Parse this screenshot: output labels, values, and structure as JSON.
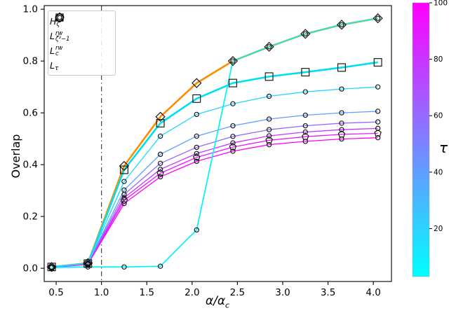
{
  "figure": {
    "ylabel": "Overlap",
    "xlabel_base": "α/α",
    "xlabel_sub": "c"
  },
  "legend": {
    "position": "upper left",
    "items": [
      {
        "marker": "diamond",
        "base": "H",
        "sup": "",
        "sub": "ζ′"
      },
      {
        "marker": "pentagon",
        "base": "L",
        "sup": "rw",
        "sub": "ζ²−1"
      },
      {
        "marker": "square",
        "base": "L",
        "sup": "rw",
        "sub": "c"
      },
      {
        "marker": "circle",
        "base": "L",
        "sup": "",
        "sub": "τ"
      }
    ]
  },
  "colorbar": {
    "label": "τ",
    "tick_values": [
      20,
      40,
      60,
      80,
      100
    ],
    "tick_labels": [
      "20",
      "40",
      "60",
      "80",
      "100"
    ],
    "min": 3,
    "max": 100,
    "color_top": "#ff00ff",
    "color_bottom": "#00ffff",
    "colormap": "cool"
  },
  "chart_data": {
    "type": "line",
    "title": "",
    "xlabel": "α/α_c",
    "ylabel": "Overlap",
    "xlim": [
      0.368,
      4.2
    ],
    "ylim": [
      -0.051,
      1.014
    ],
    "grid": false,
    "vline_x": 1.0,
    "x_ticks": [
      0.5,
      1.0,
      1.5,
      2.0,
      2.5,
      3.0,
      3.5,
      4.0
    ],
    "x_tick_labels": [
      "0.5",
      "1.0",
      "1.5",
      "2.0",
      "2.5",
      "3.0",
      "3.5",
      "4.0"
    ],
    "y_ticks": [
      0.0,
      0.2,
      0.4,
      0.6,
      0.8,
      1.0
    ],
    "y_tick_labels": [
      "0.0",
      "0.2",
      "0.4",
      "0.6",
      "0.8",
      "1.0"
    ],
    "x": [
      0.45,
      0.85,
      1.25,
      1.65,
      2.05,
      2.45,
      2.85,
      3.25,
      3.65,
      4.05
    ],
    "series": [
      {
        "name": "H_ζ′",
        "marker": "diamond",
        "color": "#ff8c00",
        "width": 2.6,
        "values": [
          0.005,
          0.02,
          0.395,
          0.585,
          0.715,
          0.8,
          0.855,
          0.905,
          0.94,
          0.965
        ]
      },
      {
        "name": "L^rw_c",
        "marker": "square",
        "color": "#00dff0",
        "width": 2.6,
        "values": [
          0.005,
          0.018,
          0.38,
          0.56,
          0.655,
          0.715,
          0.74,
          0.757,
          0.775,
          0.795
        ]
      },
      {
        "name": "L_τ τ=100",
        "marker": "circle",
        "color": "#ff00ff",
        "width": 1.3,
        "values": [
          0.003,
          0.015,
          0.25,
          0.353,
          0.413,
          0.452,
          0.477,
          0.49,
          0.499,
          0.504
        ]
      },
      {
        "name": "L^rw_ζ²−1",
        "marker": "pentagon",
        "color": "#e619ff",
        "width": 1.3,
        "values": [
          0.003,
          0.016,
          0.262,
          0.367,
          0.428,
          0.468,
          0.494,
          0.508,
          0.517,
          0.521
        ]
      },
      {
        "name": "L_τ τ=80",
        "marker": "circle",
        "color": "#c935ff",
        "width": 1.3,
        "values": [
          0.003,
          0.017,
          0.272,
          0.382,
          0.443,
          0.484,
          0.511,
          0.526,
          0.535,
          0.54
        ]
      },
      {
        "name": "L_τ τ=60",
        "marker": "circle",
        "color": "#9569ff",
        "width": 1.3,
        "values": [
          0.004,
          0.018,
          0.285,
          0.405,
          0.467,
          0.509,
          0.535,
          0.55,
          0.56,
          0.565
        ]
      },
      {
        "name": "L_τ τ=40",
        "marker": "circle",
        "color": "#5fa0ff",
        "width": 1.3,
        "values": [
          0.004,
          0.019,
          0.302,
          0.44,
          0.51,
          0.55,
          0.576,
          0.591,
          0.6,
          0.606
        ]
      },
      {
        "name": "L_τ τ=20",
        "marker": "circle",
        "color": "#1fd9ff",
        "width": 1.3,
        "values": [
          0.005,
          0.02,
          0.335,
          0.51,
          0.594,
          0.635,
          0.664,
          0.681,
          0.692,
          0.7
        ]
      },
      {
        "name": "L_τ τ=10",
        "marker": "circle",
        "color": "#00f2ff",
        "width": 1.7,
        "values": [
          0.003,
          0.005,
          0.005,
          0.008,
          0.148,
          0.8,
          0.855,
          0.905,
          0.94,
          0.965
        ]
      }
    ]
  }
}
